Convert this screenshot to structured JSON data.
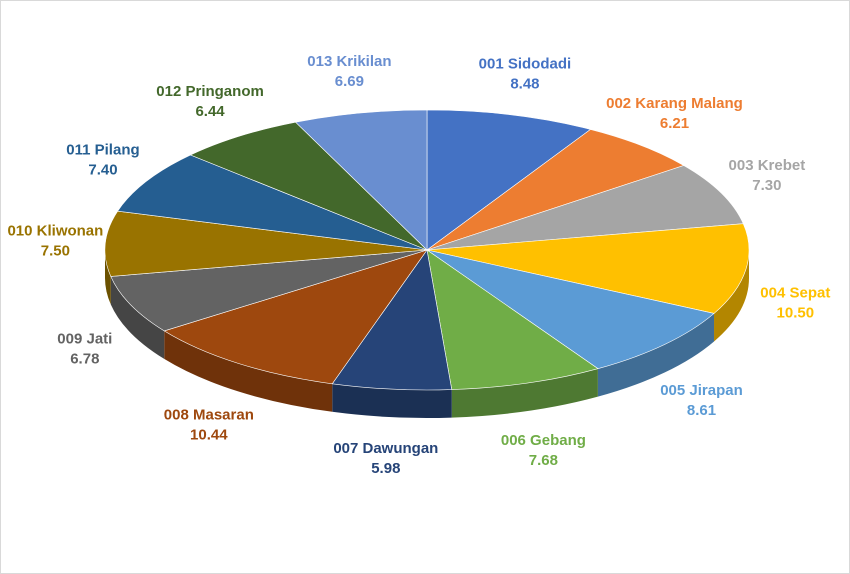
{
  "chart_data": {
    "type": "pie3d",
    "categories": [
      "001 Sidodadi",
      "002 Karang Malang",
      "003 Krebet",
      "004 Sepat",
      "005 Jirapan",
      "006 Gebang",
      "007 Dawungan",
      "008 Masaran",
      "009 Jati",
      "010 Kliwonan",
      "011 Pilang",
      "012 Pringanom",
      "013 Krikilan"
    ],
    "values": [
      8.48,
      6.21,
      7.3,
      10.5,
      8.61,
      7.68,
      5.98,
      10.44,
      6.78,
      7.5,
      7.4,
      6.44,
      6.69
    ],
    "value_labels": [
      "8.48",
      "6.21",
      "7.30",
      "10.50",
      "8.61",
      "7.68",
      "5.98",
      "10.44",
      "6.78",
      "7.50",
      "7.40",
      "6.44",
      "6.69"
    ],
    "colors": [
      "#4472c4",
      "#ed7d31",
      "#a5a5a5",
      "#ffc000",
      "#5b9bd5",
      "#70ad47",
      "#264478",
      "#9e480e",
      "#636363",
      "#997300",
      "#255e91",
      "#43682b",
      "#698ed0"
    ]
  }
}
